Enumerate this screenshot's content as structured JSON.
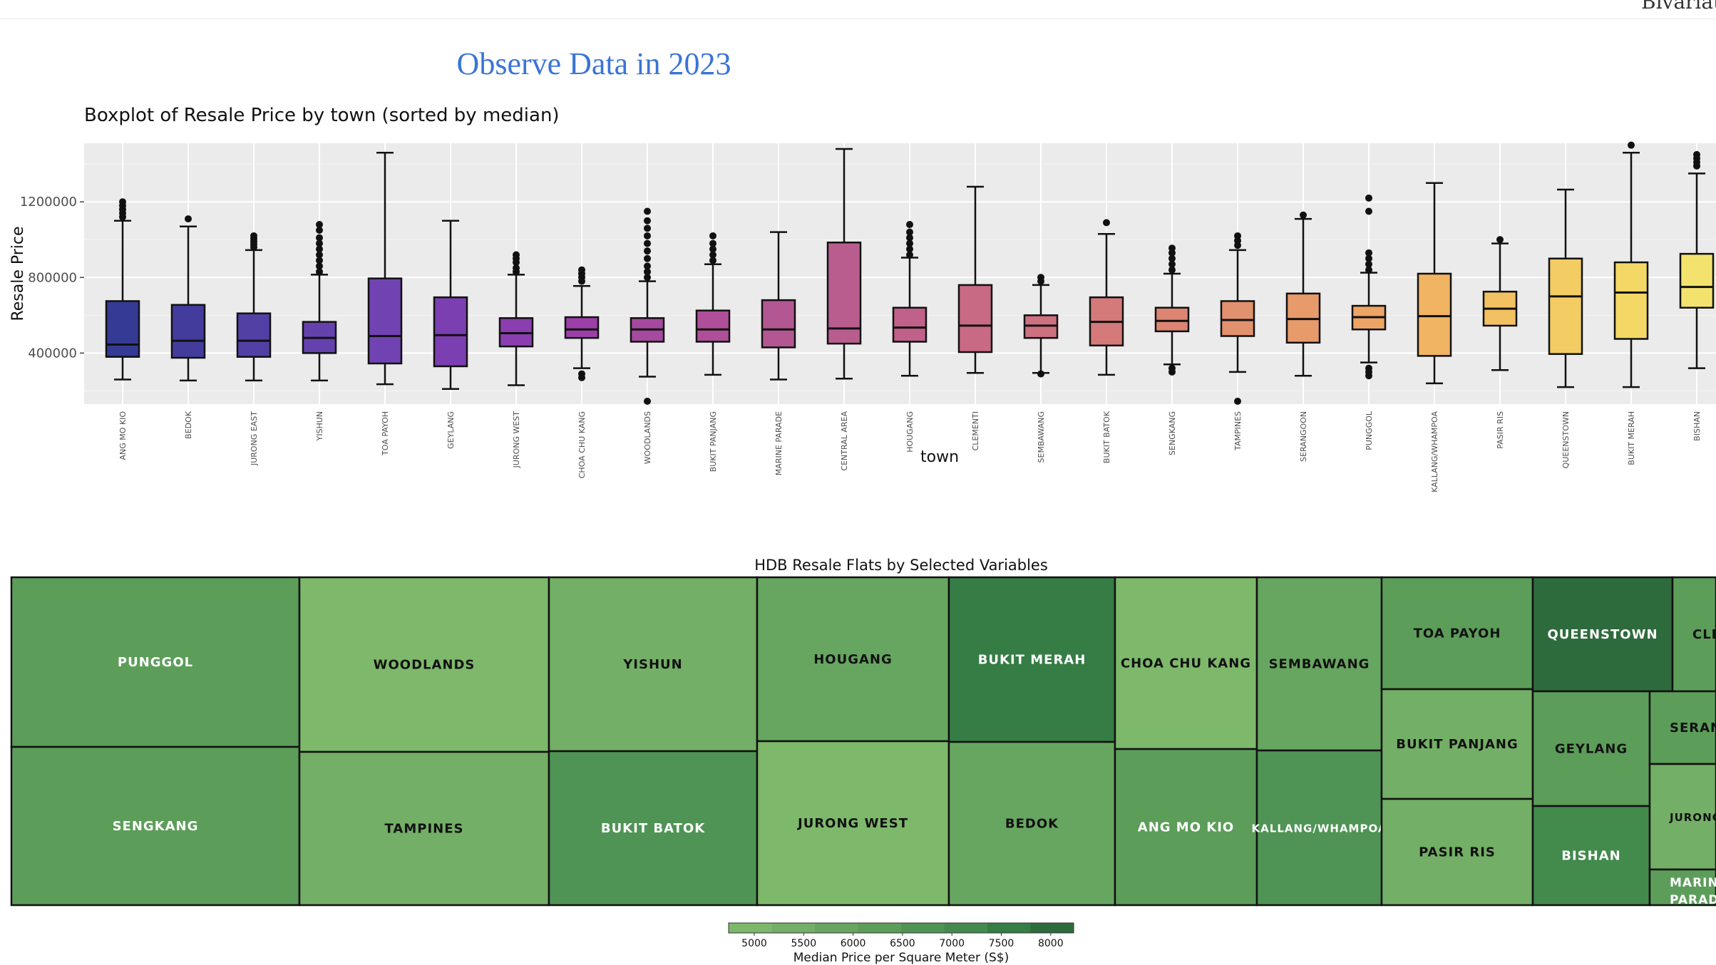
{
  "header": {
    "cutoff_label": "Bivariate"
  },
  "page_title": "Observe Data in 2023",
  "chart_data": [
    {
      "type": "box",
      "title": "Boxplot of Resale Price by town (sorted by median)",
      "xlabel": "town",
      "ylabel": "Resale Price",
      "ylim": [
        130000,
        1510000
      ],
      "yticks": [
        400000,
        800000,
        1200000
      ],
      "ytick_labels": [
        "400000",
        "800000",
        "1200000"
      ],
      "grid": true,
      "categories": [
        "ANG MO KIO",
        "BEDOK",
        "JURONG EAST",
        "YISHUN",
        "TOA PAYOH",
        "GEYLANG",
        "JURONG WEST",
        "CHOA CHU KANG",
        "WOODLANDS",
        "BUKIT PANJANG",
        "MARINE PARADE",
        "CENTRAL AREA",
        "HOUGANG",
        "CLEMENTI",
        "SEMBAWANG",
        "BUKIT BATOK",
        "SENGKANG",
        "TAMPINES",
        "SERANGOON",
        "PUNGGOL",
        "KALLANG/WHAMPOA",
        "PASIR RIS",
        "QUEENSTOWN",
        "BUKIT MERAH",
        "BISHAN"
      ],
      "boxes": [
        {
          "min": 260000,
          "q1": 380000,
          "median": 445000,
          "q3": 675000,
          "max": 1100000,
          "outliers": [
            1120000,
            1140000,
            1160000,
            1180000,
            1200000
          ]
        },
        {
          "min": 255000,
          "q1": 375000,
          "median": 465000,
          "q3": 655000,
          "max": 1070000,
          "outliers": [
            1110000
          ]
        },
        {
          "min": 255000,
          "q1": 380000,
          "median": 465000,
          "q3": 610000,
          "max": 945000,
          "outliers": [
            960000,
            975000,
            990000,
            1005000,
            1020000
          ]
        },
        {
          "min": 255000,
          "q1": 400000,
          "median": 480000,
          "q3": 565000,
          "max": 815000,
          "outliers": [
            830000,
            860000,
            890000,
            920000,
            950000,
            980000,
            1010000,
            1050000,
            1080000
          ]
        },
        {
          "min": 235000,
          "q1": 345000,
          "median": 490000,
          "q3": 795000,
          "max": 1460000,
          "outliers": []
        },
        {
          "min": 210000,
          "q1": 330000,
          "median": 495000,
          "q3": 695000,
          "max": 1100000,
          "outliers": []
        },
        {
          "min": 230000,
          "q1": 435000,
          "median": 505000,
          "q3": 585000,
          "max": 815000,
          "outliers": [
            830000,
            850000,
            880000,
            900000,
            920000
          ]
        },
        {
          "min": 320000,
          "q1": 480000,
          "median": 525000,
          "q3": 590000,
          "max": 755000,
          "outliers": [
            270000,
            290000,
            780000,
            800000,
            820000,
            840000
          ]
        },
        {
          "min": 275000,
          "q1": 460000,
          "median": 525000,
          "q3": 585000,
          "max": 780000,
          "outliers": [
            145000,
            800000,
            830000,
            860000,
            900000,
            940000,
            980000,
            1020000,
            1060000,
            1100000,
            1150000
          ]
        },
        {
          "min": 285000,
          "q1": 460000,
          "median": 525000,
          "q3": 625000,
          "max": 870000,
          "outliers": [
            890000,
            920000,
            950000,
            980000,
            1020000
          ]
        },
        {
          "min": 260000,
          "q1": 430000,
          "median": 525000,
          "q3": 680000,
          "max": 1040000,
          "outliers": []
        },
        {
          "min": 265000,
          "q1": 450000,
          "median": 530000,
          "q3": 985000,
          "max": 1480000,
          "outliers": []
        },
        {
          "min": 280000,
          "q1": 460000,
          "median": 535000,
          "q3": 640000,
          "max": 905000,
          "outliers": [
            920000,
            950000,
            980000,
            1010000,
            1040000,
            1080000
          ]
        },
        {
          "min": 295000,
          "q1": 405000,
          "median": 545000,
          "q3": 760000,
          "max": 1280000,
          "outliers": []
        },
        {
          "min": 295000,
          "q1": 480000,
          "median": 545000,
          "q3": 600000,
          "max": 760000,
          "outliers": [
            290000,
            780000,
            800000
          ]
        },
        {
          "min": 285000,
          "q1": 440000,
          "median": 565000,
          "q3": 695000,
          "max": 1030000,
          "outliers": [
            1090000
          ]
        },
        {
          "min": 340000,
          "q1": 515000,
          "median": 570000,
          "q3": 640000,
          "max": 820000,
          "outliers": [
            300000,
            320000,
            840000,
            870000,
            900000,
            930000,
            955000
          ]
        },
        {
          "min": 300000,
          "q1": 490000,
          "median": 575000,
          "q3": 675000,
          "max": 945000,
          "outliers": [
            145000,
            970000,
            995000,
            1020000
          ]
        },
        {
          "min": 280000,
          "q1": 455000,
          "median": 580000,
          "q3": 715000,
          "max": 1110000,
          "outliers": [
            1130000
          ]
        },
        {
          "min": 350000,
          "q1": 525000,
          "median": 590000,
          "q3": 650000,
          "max": 825000,
          "outliers": [
            280000,
            300000,
            320000,
            840000,
            870000,
            900000,
            930000,
            1150000,
            1220000
          ]
        },
        {
          "min": 240000,
          "q1": 385000,
          "median": 595000,
          "q3": 820000,
          "max": 1300000,
          "outliers": []
        },
        {
          "min": 310000,
          "q1": 545000,
          "median": 635000,
          "q3": 725000,
          "max": 980000,
          "outliers": [
            1000000
          ]
        },
        {
          "min": 220000,
          "q1": 395000,
          "median": 700000,
          "q3": 900000,
          "max": 1265000,
          "outliers": []
        },
        {
          "min": 220000,
          "q1": 475000,
          "median": 720000,
          "q3": 880000,
          "max": 1460000,
          "outliers": [
            1500000
          ]
        },
        {
          "min": 320000,
          "q1": 640000,
          "median": 750000,
          "q3": 925000,
          "max": 1350000,
          "outliers": [
            1390000,
            1410000,
            1430000,
            1450000
          ]
        }
      ],
      "colors": [
        "#353a95",
        "#433c9c",
        "#5240a5",
        "#6541ad",
        "#7042b2",
        "#7c3fb1",
        "#8a3eaf",
        "#9c40a8",
        "#a54a9e",
        "#af4f99",
        "#b35792",
        "#b85d8e",
        "#c06189",
        "#c86a84",
        "#cd7080",
        "#d57a7a",
        "#dc8573",
        "#e2916f",
        "#e79a6a",
        "#eda565",
        "#f0b462",
        "#f2c161",
        "#f3cd63",
        "#f3d866",
        "#f3e36e"
      ]
    },
    {
      "type": "treemap",
      "title": "HDB Resale Flats by Selected Variables",
      "legend_title": "Median Price per Square Meter (S$)",
      "legend_ticks": [
        5000,
        5500,
        6000,
        6500,
        7000,
        7500,
        8000
      ],
      "legend_colors": [
        "#7eb86b",
        "#73af66",
        "#67a660",
        "#5c9d5a",
        "#4f9454",
        "#438a4d",
        "#357d45",
        "#2e6b3c"
      ],
      "tiles": [
        {
          "label": "PUNGGOL",
          "value": 6700
        },
        {
          "label": "SENGKANG",
          "value": 6600
        },
        {
          "label": "WOODLANDS",
          "value": 5200
        },
        {
          "label": "TAMPINES",
          "value": 5600
        },
        {
          "label": "YISHUN",
          "value": 5700
        },
        {
          "label": "BUKIT BATOK",
          "value": 6800
        },
        {
          "label": "HOUGANG",
          "value": 6100
        },
        {
          "label": "JURONG WEST",
          "value": 5200
        },
        {
          "label": "BUKIT MERAH",
          "value": 8000
        },
        {
          "label": "BEDOK",
          "value": 6200
        },
        {
          "label": "CHOA CHU KANG",
          "value": 5000
        },
        {
          "label": "ANG MO KIO",
          "value": 6600
        },
        {
          "label": "SEMBAWANG",
          "value": 6000
        },
        {
          "label": "KALLANG/WHAMPOA",
          "value": 7200
        },
        {
          "label": "TOA PAYOH",
          "value": 6400
        },
        {
          "label": "BUKIT PANJANG",
          "value": 5500
        },
        {
          "label": "PASIR RIS",
          "value": 5600
        },
        {
          "label": "QUEENSTOWN",
          "value": 8400
        },
        {
          "label": "GEYLANG",
          "value": 6300
        },
        {
          "label": "BISHAN",
          "value": 7500
        },
        {
          "label": "CLEMENTI",
          "value": 6400
        },
        {
          "label": "SERANGOON",
          "value": 6300
        },
        {
          "label": "JURONG EAST",
          "value": 5500
        },
        {
          "label": "MARINE PARADE",
          "value": 6600
        }
      ]
    }
  ]
}
